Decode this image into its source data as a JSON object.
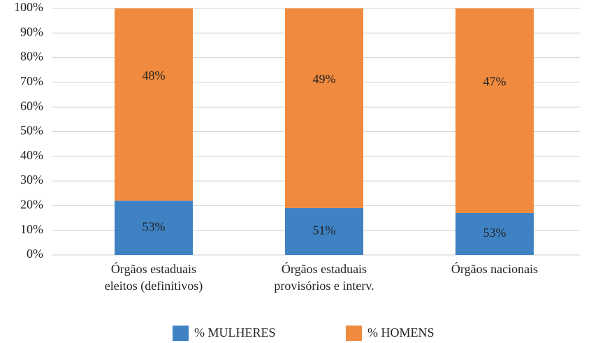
{
  "chart_data": {
    "type": "stacked_bar",
    "categories": [
      [
        "Órgãos estaduais",
        "eleitos (definitivos)"
      ],
      [
        "Órgãos estaduais",
        "provisórios e interv."
      ],
      [
        "Órgãos nacionais"
      ]
    ],
    "series": [
      {
        "name": "% MULHERES",
        "color": "#3f82c4",
        "values": [
          22,
          19,
          17
        ]
      },
      {
        "name": "% HOMENS",
        "color": "#ef8a3e",
        "values": [
          78,
          81,
          83
        ]
      }
    ],
    "annotations": [
      [
        "53%",
        "51%",
        "53%"
      ],
      [
        "48%",
        "49%",
        "47%"
      ]
    ],
    "ylim": [
      0,
      100
    ],
    "yticks": [
      {
        "value": 0,
        "label": "0%"
      },
      {
        "value": 10,
        "label": "10%"
      },
      {
        "value": 20,
        "label": "20%"
      },
      {
        "value": 30,
        "label": "30%"
      },
      {
        "value": 40,
        "label": "40%"
      },
      {
        "value": 50,
        "label": "50%"
      },
      {
        "value": 60,
        "label": "60%"
      },
      {
        "value": 70,
        "label": "70%"
      },
      {
        "value": 80,
        "label": "80%"
      },
      {
        "value": 90,
        "label": "90%"
      },
      {
        "value": 100,
        "label": "100%"
      }
    ],
    "grid": true,
    "legend": "bottom"
  }
}
